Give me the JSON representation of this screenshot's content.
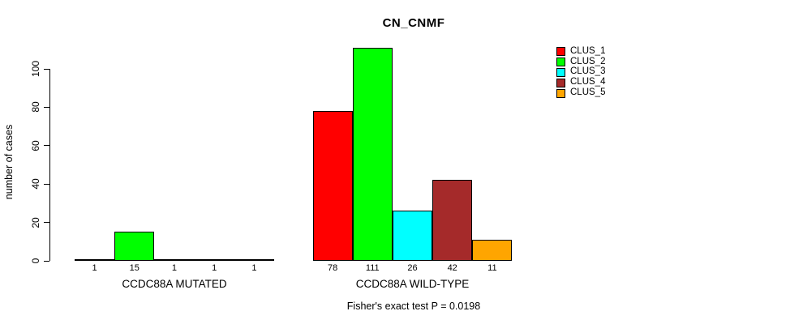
{
  "chart_data": {
    "type": "bar",
    "title": "CN_CNMF",
    "ylabel": "number of cases",
    "xlabel": "",
    "ylim": [
      0,
      111
    ],
    "yticks": [
      0,
      20,
      40,
      60,
      80,
      100
    ],
    "grid": false,
    "legend_position": "top-right",
    "categories": [
      "CCDC88A MUTATED",
      "CCDC88A WILD-TYPE"
    ],
    "series": [
      {
        "name": "CLUS_1",
        "color": "#FF0000",
        "values": [
          1,
          78
        ]
      },
      {
        "name": "CLUS_2",
        "color": "#00FF00",
        "values": [
          15,
          111
        ]
      },
      {
        "name": "CLUS_3",
        "color": "#00FFFF",
        "values": [
          1,
          26
        ]
      },
      {
        "name": "CLUS_4",
        "color": "#A52A2A",
        "values": [
          1,
          42
        ]
      },
      {
        "name": "CLUS_5",
        "color": "#FFA500",
        "values": [
          1,
          11
        ]
      }
    ],
    "bar_value_labels": [
      [
        "1",
        "15",
        "1",
        "1",
        "1"
      ],
      [
        "78",
        "111",
        "26",
        "42",
        "11"
      ]
    ],
    "annotation": "Fisher's exact test P = 0.0198"
  }
}
